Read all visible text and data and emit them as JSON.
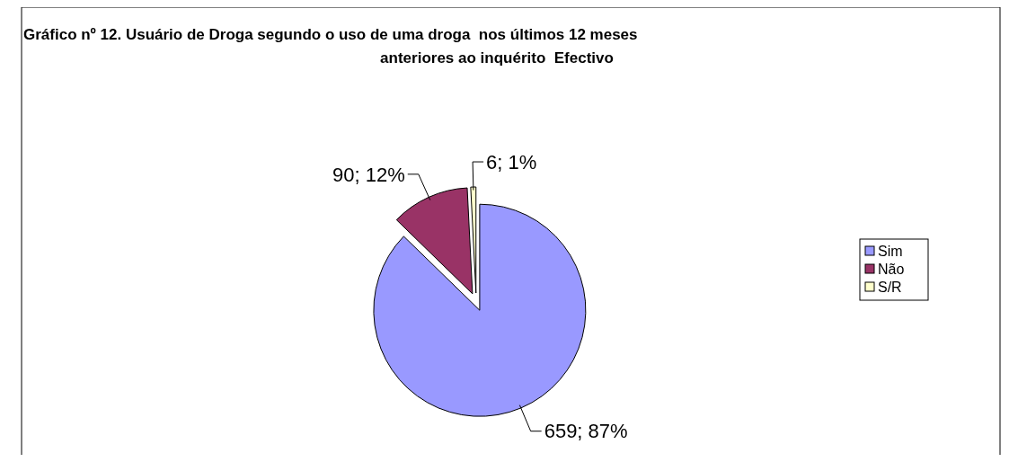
{
  "chart_data": {
    "type": "pie",
    "title": "Gráfico nº 12. Usuário de Droga segundo o uso de uma droga  nos últimos 12 meses\nanteriores ao inquérito  Efectivo",
    "categories": [
      "Sim",
      "Não",
      "S/R"
    ],
    "values": [
      659,
      90,
      6
    ],
    "colors": [
      "#9999ff",
      "#993366",
      "#ffffcc"
    ],
    "value_labels": [
      "659; 87%",
      "90; 12%",
      "6; 1%"
    ],
    "legend": "right"
  }
}
